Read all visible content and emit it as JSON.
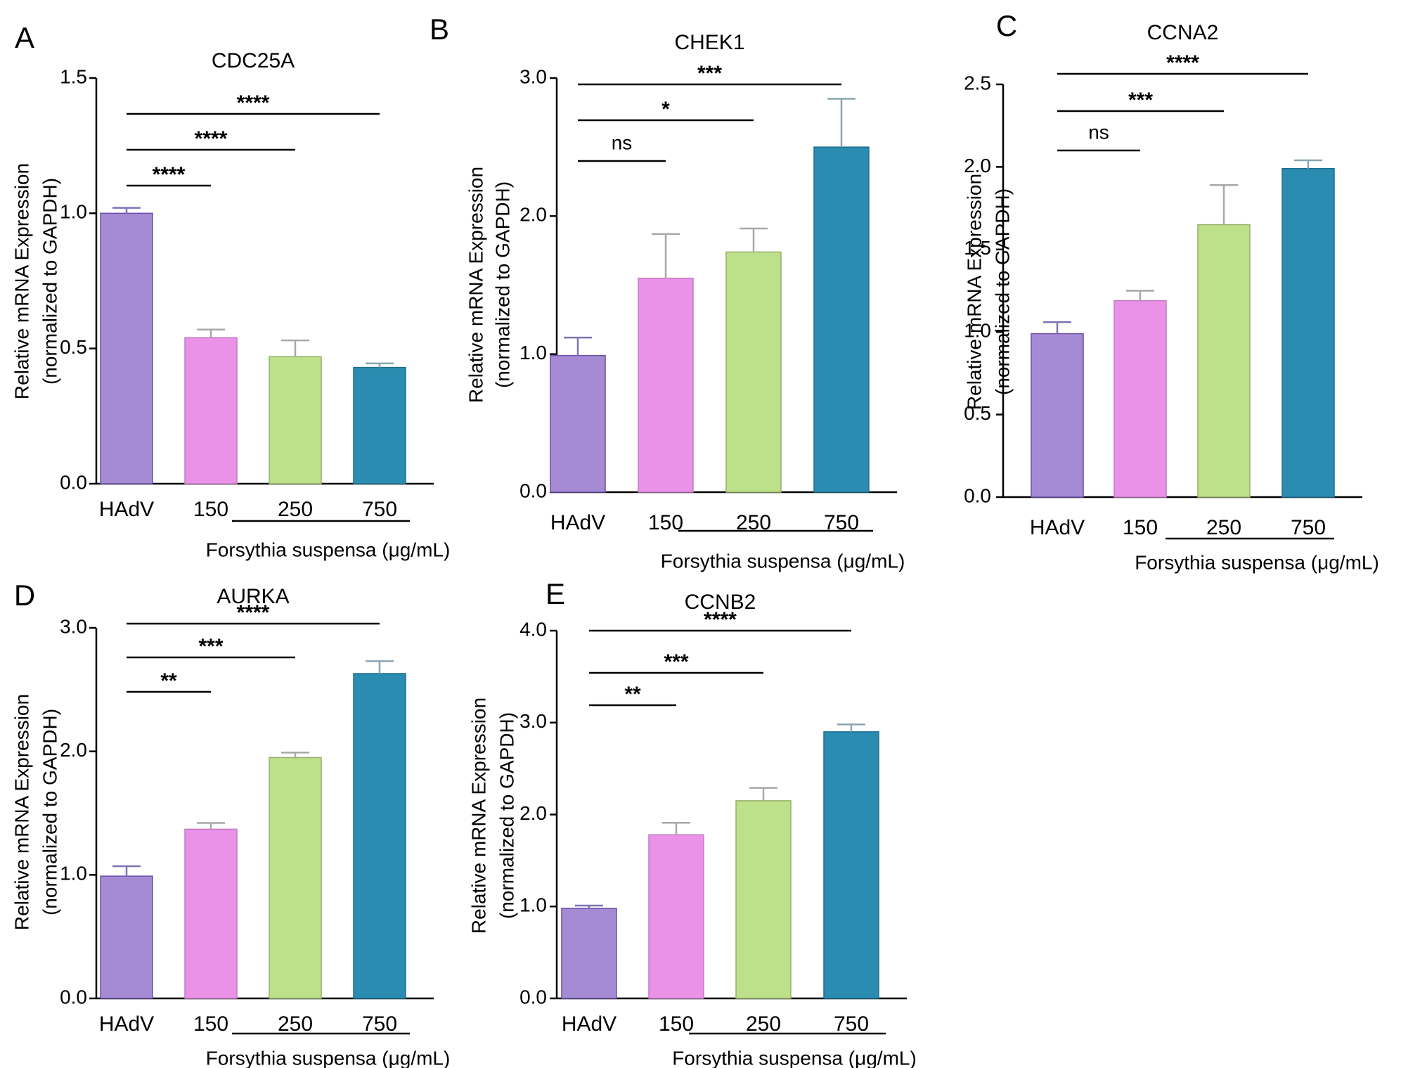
{
  "figure": {
    "group_xlabel": "Forsythia suspensa (μg/mL)",
    "ylabel_line1": "Relative mRNA Expression",
    "ylabel_line2": "(normalized to GAPDH)"
  },
  "colors": {
    "HAdV": {
      "fill": "#a58bd4",
      "stroke": "#6a4fa8",
      "err": "#7e74b3"
    },
    "150": {
      "fill": "#ea92e8",
      "stroke": "#c27bc0",
      "err": "#a7a7a7"
    },
    "250": {
      "fill": "#bde08a",
      "stroke": "#95b06a",
      "err": "#a8a8a8"
    },
    "750": {
      "fill": "#2a8cb0",
      "stroke": "#1e6f8f",
      "err": "#8aa5b0"
    }
  },
  "chart_data": [
    {
      "panel": "A",
      "type": "bar",
      "title": "CDC25A",
      "categories": [
        "HAdV",
        "150",
        "250",
        "750"
      ],
      "values": [
        1.0,
        0.54,
        0.47,
        0.43
      ],
      "errors": [
        0.02,
        0.03,
        0.06,
        0.015
      ],
      "ylim": [
        0,
        1.5
      ],
      "yticks": [
        "0.0",
        "0.5",
        "1.0",
        "1.5"
      ],
      "significance": [
        {
          "from": "HAdV",
          "to": "150",
          "label": "****"
        },
        {
          "from": "HAdV",
          "to": "250",
          "label": "****"
        },
        {
          "from": "HAdV",
          "to": "750",
          "label": "****"
        }
      ]
    },
    {
      "panel": "B",
      "type": "bar",
      "title": "CHEK1",
      "categories": [
        "HAdV",
        "150",
        "250",
        "750"
      ],
      "values": [
        0.99,
        1.55,
        1.74,
        2.5
      ],
      "errors": [
        0.13,
        0.32,
        0.17,
        0.35
      ],
      "ylim": [
        0,
        3.0
      ],
      "yticks": [
        "0.0",
        "1.0",
        "2.0",
        "3.0"
      ],
      "significance": [
        {
          "from": "HAdV",
          "to": "150",
          "label": "ns"
        },
        {
          "from": "HAdV",
          "to": "250",
          "label": "*"
        },
        {
          "from": "HAdV",
          "to": "750",
          "label": "***"
        }
      ]
    },
    {
      "panel": "C",
      "type": "bar",
      "title": "CCNA2",
      "categories": [
        "HAdV",
        "150",
        "250",
        "750"
      ],
      "values": [
        0.99,
        1.19,
        1.65,
        1.99
      ],
      "errors": [
        0.07,
        0.06,
        0.24,
        0.05
      ],
      "ylim": [
        0,
        2.5
      ],
      "yticks": [
        "0.0",
        "0.5",
        "1.0",
        "1.5",
        "2.0",
        "2.5"
      ],
      "significance": [
        {
          "from": "HAdV",
          "to": "150",
          "label": "ns"
        },
        {
          "from": "HAdV",
          "to": "250",
          "label": "***"
        },
        {
          "from": "HAdV",
          "to": "750",
          "label": "****"
        }
      ]
    },
    {
      "panel": "D",
      "type": "bar",
      "title": "AURKA",
      "categories": [
        "HAdV",
        "150",
        "250",
        "750"
      ],
      "values": [
        0.99,
        1.37,
        1.95,
        2.63
      ],
      "errors": [
        0.08,
        0.05,
        0.04,
        0.1
      ],
      "ylim": [
        0,
        3.0
      ],
      "yticks": [
        "0.0",
        "1.0",
        "2.0",
        "3.0"
      ],
      "significance": [
        {
          "from": "HAdV",
          "to": "150",
          "label": "**"
        },
        {
          "from": "HAdV",
          "to": "250",
          "label": "***"
        },
        {
          "from": "HAdV",
          "to": "750",
          "label": "****"
        }
      ]
    },
    {
      "panel": "E",
      "type": "bar",
      "title": "CCNB2",
      "categories": [
        "HAdV",
        "150",
        "250",
        "750"
      ],
      "values": [
        0.98,
        1.78,
        2.15,
        2.9
      ],
      "errors": [
        0.03,
        0.13,
        0.14,
        0.08
      ],
      "ylim": [
        0,
        4.0
      ],
      "yticks": [
        "0.0",
        "1.0",
        "2.0",
        "3.0",
        "4.0"
      ],
      "significance": [
        {
          "from": "HAdV",
          "to": "150",
          "label": "**"
        },
        {
          "from": "HAdV",
          "to": "250",
          "label": "***"
        },
        {
          "from": "HAdV",
          "to": "750",
          "label": "****"
        }
      ]
    }
  ]
}
